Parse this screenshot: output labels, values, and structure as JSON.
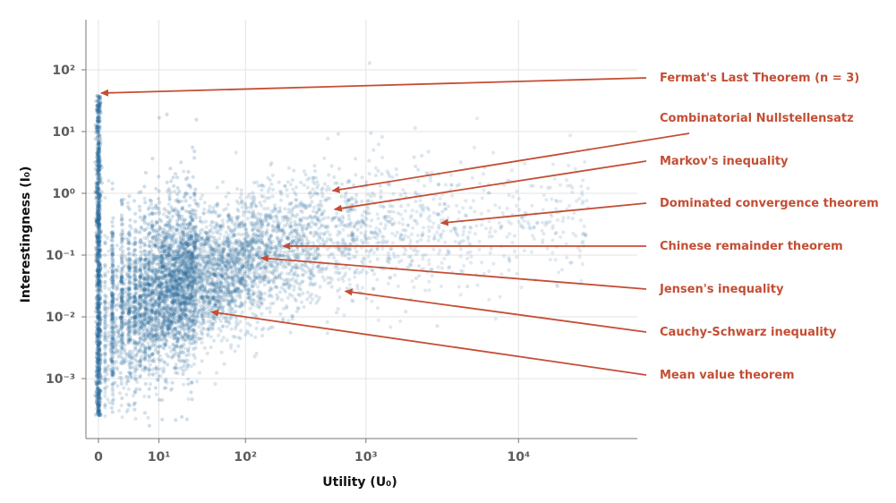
{
  "colors": {
    "points": "#2b6a9c",
    "annotation": "#c44e34",
    "grid": "#e3e3e3",
    "axis": "#777777",
    "text": "#111111",
    "tick_text": "#5c5c5c"
  },
  "chart_data": {
    "type": "scatter",
    "title": "",
    "xlabel": "Utility (U₀)",
    "ylabel": "Interestingness (I₀)",
    "x_scale": "symlog",
    "y_scale": "log",
    "xlim": [
      -0.5,
      70000
    ],
    "ylim": [
      8e-05,
      500
    ],
    "grid": true,
    "x_ticks": [
      {
        "value": 0,
        "label": "0"
      },
      {
        "value": 10,
        "label": "10¹"
      },
      {
        "value": 100,
        "label": "10²"
      },
      {
        "value": 1000,
        "label": "10³"
      },
      {
        "value": 10000,
        "label": "10⁴"
      }
    ],
    "y_ticks": [
      {
        "value": 0.001,
        "label": "10⁻³"
      },
      {
        "value": 0.01,
        "label": "10⁻²"
      },
      {
        "value": 0.1,
        "label": "10⁻¹"
      },
      {
        "value": 1,
        "label": "10⁰"
      },
      {
        "value": 10,
        "label": "10¹"
      },
      {
        "value": 100,
        "label": "10²"
      }
    ],
    "annotations": [
      {
        "text": "Fermat's Last Theorem (n = 3)",
        "x": 0,
        "y": 42
      },
      {
        "text": "Combinatorial Nullstellensatz",
        "x": 560,
        "y": 1.1
      },
      {
        "text": "Markov's inequality",
        "x": 580,
        "y": 0.55
      },
      {
        "text": "Dominated convergence theorem",
        "x": 3300,
        "y": 0.33
      },
      {
        "text": "Chinese remainder theorem",
        "x": 220,
        "y": 0.14
      },
      {
        "text": "Jensen's inequality",
        "x": 140,
        "y": 0.09
      },
      {
        "text": "Cauchy-Schwarz inequality",
        "x": 700,
        "y": 0.026
      },
      {
        "text": "Mean value theorem",
        "x": 45,
        "y": 0.012
      }
    ]
  }
}
